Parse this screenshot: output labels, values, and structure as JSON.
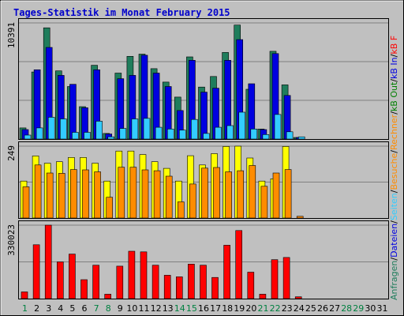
{
  "chart_data": {
    "type": "bar",
    "title": "Tages-Statistik im Monat February 2015",
    "x": [
      "1",
      "2",
      "3",
      "4",
      "5",
      "6",
      "7",
      "8",
      "9",
      "10",
      "11",
      "12",
      "13",
      "14",
      "15",
      "16",
      "17",
      "18",
      "19",
      "20",
      "21",
      "22",
      "23",
      "24",
      "25",
      "26",
      "27",
      "28",
      "29",
      "30",
      "31"
    ],
    "x_highlight": [
      "1",
      "7",
      "8",
      "14",
      "15",
      "21",
      "22",
      "28",
      "29"
    ],
    "colors": {
      "title": "#0000cc",
      "background": "#c0c0c0",
      "frame": "#000000",
      "grid": "#808080",
      "requests": "#1f7d5c",
      "files": "#0000e0",
      "pages": "#33ccff",
      "visits": "#ffff00",
      "sites": "#ff8c00",
      "kbytes": "#ff0000",
      "highlight_day": "#008040",
      "normal_day": "#000000",
      "right_label_separator": "#000000"
    },
    "panels": [
      {
        "id": "top",
        "ymax_label": "10391",
        "ymax": 10391,
        "series": [
          {
            "name": "Anfragen",
            "color": "#1f7d5c",
            "values": [
              1000,
              6000,
              9950,
              6100,
              4700,
              2900,
              6600,
              500,
              5900,
              7400,
              7600,
              6300,
              5100,
              3750,
              7350,
              4650,
              5600,
              7750,
              10200,
              4450,
              900,
              7850,
              4850,
              70,
              0,
              0,
              0,
              0,
              0,
              0,
              0
            ]
          },
          {
            "name": "Dateien",
            "color": "#0000e0",
            "values": [
              850,
              6200,
              8200,
              5700,
              4900,
              2800,
              6200,
              450,
              5400,
              5700,
              7500,
              5900,
              4700,
              2550,
              7050,
              4200,
              4550,
              7050,
              8900,
              4950,
              850,
              7650,
              3900,
              60,
              0,
              0,
              0,
              0,
              0,
              0,
              0
            ]
          },
          {
            "name": "Seiten",
            "color": "#33ccff",
            "values": [
              350,
              1000,
              1950,
              1800,
              600,
              600,
              1600,
              200,
              950,
              1800,
              1850,
              1050,
              900,
              800,
              1750,
              500,
              1050,
              1200,
              2400,
              900,
              400,
              2200,
              650,
              200,
              0,
              0,
              0,
              0,
              0,
              0,
              0
            ]
          }
        ]
      },
      {
        "id": "middle",
        "ymax_label": "249",
        "ymax": 249,
        "series": [
          {
            "name": "Rechner",
            "color": "#ffff00",
            "values": [
              128,
              215,
              190,
              195,
              210,
              210,
              190,
              128,
              232,
              232,
              220,
              195,
              172,
              128,
              216,
              184,
              223,
              248,
              249,
              208,
              128,
              136,
              248,
              0,
              0,
              0,
              0,
              0,
              0,
              0,
              0
            ]
          },
          {
            "name": "Besuche",
            "color": "#ff8c00",
            "values": [
              108,
              184,
              156,
              155,
              168,
              167,
              160,
              72,
              176,
              176,
              167,
              164,
              145,
              56,
              118,
              173,
              175,
              160,
              164,
              182,
              110,
              156,
              168,
              6,
              0,
              0,
              0,
              0,
              0,
              0,
              0
            ]
          }
        ]
      },
      {
        "id": "bottom",
        "ymax_label": "330023",
        "ymax": 330023,
        "series": [
          {
            "name": "kB F",
            "color": "#ff0000",
            "values": [
              30000,
              242000,
              330000,
              165000,
              200000,
              85000,
              150000,
              20000,
              146000,
              213000,
              210000,
              150000,
              105000,
              98000,
              155000,
              150000,
              95000,
              240000,
              306000,
              119000,
              20000,
              175000,
              185000,
              8000,
              0,
              0,
              0,
              0,
              0,
              0,
              0
            ]
          }
        ]
      }
    ],
    "right_label": [
      {
        "text": "Anfragen",
        "color": "#1f7d5c"
      },
      {
        "text": "/",
        "color": "#000000"
      },
      {
        "text": "Dateien",
        "color": "#0000e0"
      },
      {
        "text": "/",
        "color": "#000000"
      },
      {
        "text": "Seiten",
        "color": "#33ccff"
      },
      {
        "text": "/",
        "color": "#000000"
      },
      {
        "text": "Besuche",
        "color": "#ff8c00"
      },
      {
        "text": "/",
        "color": "#000000"
      },
      {
        "text": "Rechner",
        "color": "#ff8c00"
      },
      {
        "text": "/",
        "color": "#000000"
      },
      {
        "text": "kB Out",
        "color": "#008000"
      },
      {
        "text": "/",
        "color": "#000000"
      },
      {
        "text": "kB In",
        "color": "#0000e0"
      },
      {
        "text": "/",
        "color": "#000000"
      },
      {
        "text": "kB F",
        "color": "#ff0000"
      }
    ]
  }
}
